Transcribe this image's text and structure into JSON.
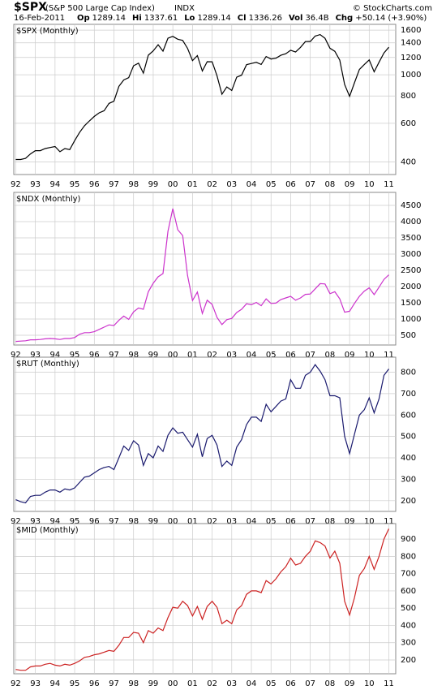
{
  "header": {
    "symbol": "$SPX",
    "name": "(S&P 500 Large Cap Index)",
    "exchange": "INDX",
    "copyright": "© StockCharts.com",
    "date": "16-Feb-2011",
    "stats": [
      {
        "label": "Op",
        "value": "1289.14"
      },
      {
        "label": "Hi",
        "value": "1337.61"
      },
      {
        "label": "Lo",
        "value": "1289.14"
      },
      {
        "label": "Cl",
        "value": "1336.26"
      },
      {
        "label": "Vol",
        "value": "36.4B"
      },
      {
        "label": "Chg",
        "value": "+50.14 (+3.90%)"
      }
    ]
  },
  "chart_data": [
    {
      "type": "line",
      "title": "$SPX (Monthly)",
      "log_scale": true,
      "grid": true,
      "x": [
        1992,
        1992.25,
        1992.5,
        1992.75,
        1993,
        1993.25,
        1993.5,
        1993.75,
        1994,
        1994.25,
        1994.5,
        1994.75,
        1995,
        1995.25,
        1995.5,
        1995.75,
        1996,
        1996.25,
        1996.5,
        1996.75,
        1997,
        1997.25,
        1997.5,
        1997.75,
        1998,
        1998.25,
        1998.5,
        1998.75,
        1999,
        1999.25,
        1999.5,
        1999.75,
        2000,
        2000.25,
        2000.5,
        2000.75,
        2001,
        2001.25,
        2001.5,
        2001.75,
        2002,
        2002.25,
        2002.5,
        2002.75,
        2003,
        2003.25,
        2003.5,
        2003.75,
        2004,
        2004.25,
        2004.5,
        2004.75,
        2005,
        2005.25,
        2005.5,
        2005.75,
        2006,
        2006.25,
        2006.5,
        2006.75,
        2007,
        2007.25,
        2007.5,
        2007.75,
        2008,
        2008.25,
        2008.5,
        2008.75,
        2009,
        2009.25,
        2009.5,
        2009.75,
        2010,
        2010.25,
        2010.5,
        2010.75,
        2011
      ],
      "series": [
        {
          "name": "$SPX",
          "color": "#000000",
          "values": [
            410,
            410,
            415,
            435,
            450,
            450,
            460,
            465,
            470,
            445,
            460,
            455,
            500,
            545,
            585,
            615,
            645,
            670,
            685,
            740,
            757,
            885,
            947,
            970,
            1100,
            1130,
            1017,
            1229,
            1286,
            1372,
            1282,
            1469,
            1498,
            1454,
            1436,
            1320,
            1160,
            1224,
            1040,
            1148,
            1147,
            990,
            815,
            880,
            848,
            975,
            996,
            1112,
            1126,
            1140,
            1115,
            1212,
            1180,
            1191,
            1228,
            1248,
            1295,
            1270,
            1335,
            1418,
            1420,
            1503,
            1527,
            1468,
            1322,
            1280,
            1166,
            903,
            797,
            919,
            1057,
            1115,
            1169,
            1031,
            1141,
            1258,
            1336
          ]
        }
      ],
      "ylim": [
        350,
        1700
      ],
      "yticks": [
        400,
        600,
        800,
        1000,
        1200,
        1400,
        1600
      ],
      "xlim": [
        1991.9,
        2011.35
      ],
      "xticks": [
        {
          "value": 1992,
          "label": "92"
        },
        {
          "value": 1993,
          "label": "93"
        },
        {
          "value": 1994,
          "label": "94"
        },
        {
          "value": 1995,
          "label": "95"
        },
        {
          "value": 1996,
          "label": "96"
        },
        {
          "value": 1997,
          "label": "97"
        },
        {
          "value": 1998,
          "label": "98"
        },
        {
          "value": 1999,
          "label": "99"
        },
        {
          "value": 2000,
          "label": "00"
        },
        {
          "value": 2001,
          "label": "01"
        },
        {
          "value": 2002,
          "label": "02"
        },
        {
          "value": 2003,
          "label": "03"
        },
        {
          "value": 2004,
          "label": "04"
        },
        {
          "value": 2005,
          "label": "05"
        },
        {
          "value": 2006,
          "label": "06"
        },
        {
          "value": 2007,
          "label": "07"
        },
        {
          "value": 2008,
          "label": "08"
        },
        {
          "value": 2009,
          "label": "09"
        },
        {
          "value": 2010,
          "label": "10"
        },
        {
          "value": 2011,
          "label": "11"
        }
      ]
    },
    {
      "type": "line",
      "title": "$NDX (Monthly)",
      "log_scale": false,
      "grid": true,
      "x": [
        1992,
        1992.25,
        1992.5,
        1992.75,
        1993,
        1993.25,
        1993.5,
        1993.75,
        1994,
        1994.25,
        1994.5,
        1994.75,
        1995,
        1995.25,
        1995.5,
        1995.75,
        1996,
        1996.25,
        1996.5,
        1996.75,
        1997,
        1997.25,
        1997.5,
        1997.75,
        1998,
        1998.25,
        1998.5,
        1998.75,
        1999,
        1999.25,
        1999.5,
        1999.75,
        2000,
        2000.25,
        2000.5,
        2000.75,
        2001,
        2001.25,
        2001.5,
        2001.75,
        2002,
        2002.25,
        2002.5,
        2002.75,
        2003,
        2003.25,
        2003.5,
        2003.75,
        2004,
        2004.25,
        2004.5,
        2004.75,
        2005,
        2005.25,
        2005.5,
        2005.75,
        2006,
        2006.25,
        2006.5,
        2006.75,
        2007,
        2007.25,
        2007.5,
        2007.75,
        2008,
        2008.25,
        2008.5,
        2008.75,
        2009,
        2009.25,
        2009.5,
        2009.75,
        2010,
        2010.25,
        2010.5,
        2010.75,
        2011
      ],
      "series": [
        {
          "name": "$NDX",
          "color": "#cc33cc",
          "values": [
            310,
            320,
            330,
            360,
            360,
            370,
            390,
            400,
            390,
            370,
            400,
            400,
            430,
            530,
            580,
            580,
            610,
            680,
            750,
            820,
            800,
            960,
            1090,
            990,
            1220,
            1340,
            1300,
            1840,
            2100,
            2300,
            2400,
            3700,
            4400,
            3750,
            3570,
            2340,
            1570,
            1830,
            1170,
            1580,
            1450,
            1050,
            830,
            980,
            1020,
            1200,
            1300,
            1470,
            1440,
            1510,
            1410,
            1620,
            1480,
            1490,
            1600,
            1650,
            1700,
            1580,
            1650,
            1760,
            1770,
            1930,
            2090,
            2080,
            1780,
            1840,
            1620,
            1210,
            1240,
            1480,
            1700,
            1860,
            1960,
            1750,
            1980,
            2220,
            2360
          ]
        }
      ],
      "ylim": [
        200,
        4900
      ],
      "yticks": [
        500,
        1000,
        1500,
        2000,
        2500,
        3000,
        3500,
        4000,
        4500
      ],
      "xlim": [
        1991.9,
        2011.35
      ],
      "xticks": [
        {
          "value": 1992,
          "label": "92"
        },
        {
          "value": 1993,
          "label": "93"
        },
        {
          "value": 1994,
          "label": "94"
        },
        {
          "value": 1995,
          "label": "95"
        },
        {
          "value": 1996,
          "label": "96"
        },
        {
          "value": 1997,
          "label": "97"
        },
        {
          "value": 1998,
          "label": "98"
        },
        {
          "value": 1999,
          "label": "99"
        },
        {
          "value": 2000,
          "label": "00"
        },
        {
          "value": 2001,
          "label": "01"
        },
        {
          "value": 2002,
          "label": "02"
        },
        {
          "value": 2003,
          "label": "03"
        },
        {
          "value": 2004,
          "label": "04"
        },
        {
          "value": 2005,
          "label": "05"
        },
        {
          "value": 2006,
          "label": "06"
        },
        {
          "value": 2007,
          "label": "07"
        },
        {
          "value": 2008,
          "label": "08"
        },
        {
          "value": 2009,
          "label": "09"
        },
        {
          "value": 2010,
          "label": "10"
        },
        {
          "value": 2011,
          "label": "11"
        }
      ]
    },
    {
      "type": "line",
      "title": "$RUT (Monthly)",
      "log_scale": false,
      "grid": true,
      "x": [
        1992,
        1992.25,
        1992.5,
        1992.75,
        1993,
        1993.25,
        1993.5,
        1993.75,
        1994,
        1994.25,
        1994.5,
        1994.75,
        1995,
        1995.25,
        1995.5,
        1995.75,
        1996,
        1996.25,
        1996.5,
        1996.75,
        1997,
        1997.25,
        1997.5,
        1997.75,
        1998,
        1998.25,
        1998.5,
        1998.75,
        1999,
        1999.25,
        1999.5,
        1999.75,
        2000,
        2000.25,
        2000.5,
        2000.75,
        2001,
        2001.25,
        2001.5,
        2001.75,
        2002,
        2002.25,
        2002.5,
        2002.75,
        2003,
        2003.25,
        2003.5,
        2003.75,
        2004,
        2004.25,
        2004.5,
        2004.75,
        2005,
        2005.25,
        2005.5,
        2005.75,
        2006,
        2006.25,
        2006.5,
        2006.75,
        2007,
        2007.25,
        2007.5,
        2007.75,
        2008,
        2008.25,
        2008.5,
        2008.75,
        2009,
        2009.25,
        2009.5,
        2009.75,
        2010,
        2010.25,
        2010.5,
        2010.75,
        2011
      ],
      "series": [
        {
          "name": "$RUT",
          "color": "#1a1a6e",
          "values": [
            205,
            195,
            190,
            220,
            225,
            225,
            240,
            250,
            250,
            240,
            255,
            250,
            260,
            285,
            310,
            315,
            330,
            345,
            355,
            360,
            345,
            400,
            455,
            435,
            480,
            460,
            365,
            420,
            400,
            455,
            430,
            505,
            540,
            515,
            520,
            485,
            450,
            510,
            405,
            490,
            505,
            460,
            360,
            385,
            365,
            450,
            485,
            555,
            590,
            590,
            570,
            650,
            615,
            640,
            665,
            675,
            765,
            725,
            725,
            785,
            800,
            835,
            805,
            765,
            690,
            690,
            680,
            500,
            420,
            510,
            600,
            625,
            680,
            610,
            675,
            785,
            815
          ]
        }
      ],
      "ylim": [
        150,
        870
      ],
      "yticks": [
        200,
        300,
        400,
        500,
        600,
        700,
        800
      ],
      "xlim": [
        1991.9,
        2011.35
      ],
      "xticks": [
        {
          "value": 1992,
          "label": "92"
        },
        {
          "value": 1993,
          "label": "93"
        },
        {
          "value": 1994,
          "label": "94"
        },
        {
          "value": 1995,
          "label": "95"
        },
        {
          "value": 1996,
          "label": "96"
        },
        {
          "value": 1997,
          "label": "97"
        },
        {
          "value": 1998,
          "label": "98"
        },
        {
          "value": 1999,
          "label": "99"
        },
        {
          "value": 2000,
          "label": "00"
        },
        {
          "value": 2001,
          "label": "01"
        },
        {
          "value": 2002,
          "label": "02"
        },
        {
          "value": 2003,
          "label": "03"
        },
        {
          "value": 2004,
          "label": "04"
        },
        {
          "value": 2005,
          "label": "05"
        },
        {
          "value": 2006,
          "label": "06"
        },
        {
          "value": 2007,
          "label": "07"
        },
        {
          "value": 2008,
          "label": "08"
        },
        {
          "value": 2009,
          "label": "09"
        },
        {
          "value": 2010,
          "label": "10"
        },
        {
          "value": 2011,
          "label": "11"
        }
      ]
    },
    {
      "type": "line",
      "title": "$MID (Monthly)",
      "log_scale": false,
      "grid": true,
      "x": [
        1992,
        1992.25,
        1992.5,
        1992.75,
        1993,
        1993.25,
        1993.5,
        1993.75,
        1994,
        1994.25,
        1994.5,
        1994.75,
        1995,
        1995.25,
        1995.5,
        1995.75,
        1996,
        1996.25,
        1996.5,
        1996.75,
        1997,
        1997.25,
        1997.5,
        1997.75,
        1998,
        1998.25,
        1998.5,
        1998.75,
        1999,
        1999.25,
        1999.5,
        1999.75,
        2000,
        2000.25,
        2000.5,
        2000.75,
        2001,
        2001.25,
        2001.5,
        2001.75,
        2002,
        2002.25,
        2002.5,
        2002.75,
        2003,
        2003.25,
        2003.5,
        2003.75,
        2004,
        2004.25,
        2004.5,
        2004.75,
        2005,
        2005.25,
        2005.5,
        2005.75,
        2006,
        2006.25,
        2006.5,
        2006.75,
        2007,
        2007.25,
        2007.5,
        2007.75,
        2008,
        2008.25,
        2008.5,
        2008.75,
        2009,
        2009.25,
        2009.5,
        2009.75,
        2010,
        2010.25,
        2010.5,
        2010.75,
        2011
      ],
      "series": [
        {
          "name": "$MID",
          "color": "#cc2222",
          "values": [
            145,
            140,
            140,
            160,
            165,
            165,
            175,
            180,
            170,
            165,
            175,
            170,
            180,
            195,
            215,
            220,
            230,
            235,
            245,
            255,
            250,
            285,
            330,
            330,
            360,
            355,
            300,
            370,
            355,
            385,
            370,
            445,
            505,
            500,
            540,
            515,
            455,
            510,
            435,
            510,
            540,
            505,
            410,
            430,
            410,
            490,
            515,
            580,
            600,
            600,
            590,
            660,
            640,
            670,
            710,
            740,
            790,
            750,
            760,
            800,
            830,
            890,
            880,
            860,
            790,
            830,
            760,
            540,
            460,
            560,
            690,
            730,
            800,
            725,
            800,
            900,
            960
          ]
        }
      ],
      "ylim": [
        120,
        990
      ],
      "yticks": [
        200,
        300,
        400,
        500,
        600,
        700,
        800,
        900
      ],
      "xlim": [
        1991.9,
        2011.35
      ],
      "xticks": [
        {
          "value": 1992,
          "label": "92"
        },
        {
          "value": 1993,
          "label": "93"
        },
        {
          "value": 1994,
          "label": "94"
        },
        {
          "value": 1995,
          "label": "95"
        },
        {
          "value": 1996,
          "label": "96"
        },
        {
          "value": 1997,
          "label": "97"
        },
        {
          "value": 1998,
          "label": "98"
        },
        {
          "value": 1999,
          "label": "99"
        },
        {
          "value": 2000,
          "label": "00"
        },
        {
          "value": 2001,
          "label": "01"
        },
        {
          "value": 2002,
          "label": "02"
        },
        {
          "value": 2003,
          "label": "03"
        },
        {
          "value": 2004,
          "label": "04"
        },
        {
          "value": 2005,
          "label": "05"
        },
        {
          "value": 2006,
          "label": "06"
        },
        {
          "value": 2007,
          "label": "07"
        },
        {
          "value": 2008,
          "label": "08"
        },
        {
          "value": 2009,
          "label": "09"
        },
        {
          "value": 2010,
          "label": "10"
        },
        {
          "value": 2011,
          "label": "11"
        }
      ]
    }
  ]
}
